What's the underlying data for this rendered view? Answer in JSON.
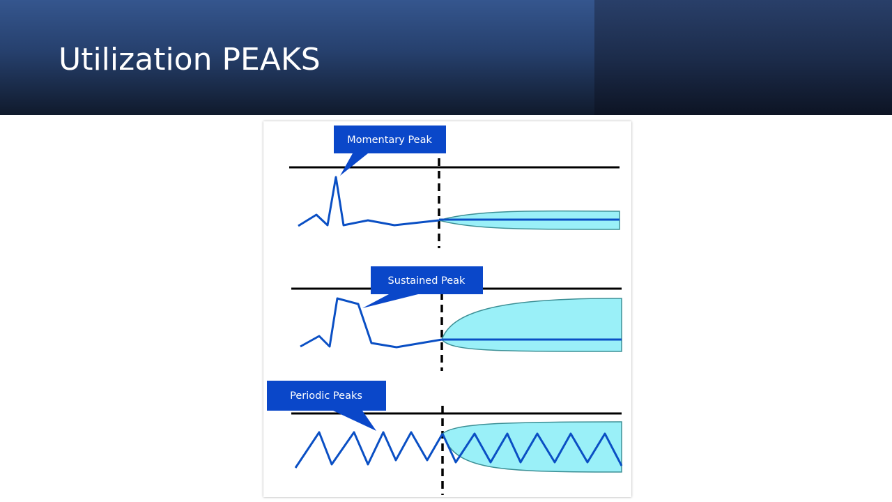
{
  "slide": {
    "title": "Utilization PEAKS"
  },
  "diagram": {
    "panels": [
      {
        "id": "momentary",
        "callout": "Momentary Peak"
      },
      {
        "id": "sustained",
        "callout": "Sustained Peak"
      },
      {
        "id": "periodic",
        "callout": "Periodic Peaks"
      }
    ]
  },
  "colors": {
    "header_top": "#35568e",
    "header_bottom": "#101a2c",
    "callout": "#0a47c9",
    "series_line": "#0a4fc4",
    "forecast_fill": "#9af0f8",
    "forecast_stroke": "#3c8f95",
    "threshold_line": "#000000"
  }
}
